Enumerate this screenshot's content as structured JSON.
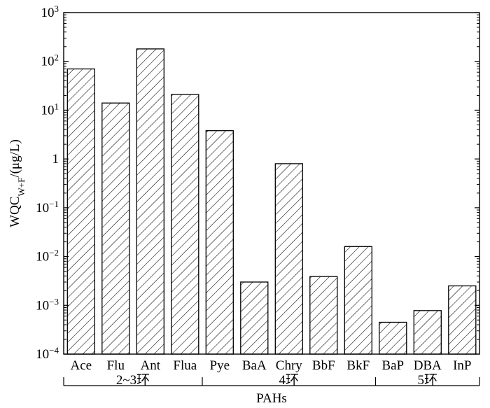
{
  "chart_data": {
    "type": "bar",
    "title": "",
    "ylabel_main": "WQC",
    "ylabel_sub": "W+F",
    "ylabel_tail": "/(μg/L)",
    "xlabel": "PAHs",
    "y_scale": "log",
    "ylim": [
      0.0001,
      1000
    ],
    "y_ticks": [
      {
        "value": 0.0001,
        "base": "10",
        "exp": "−4"
      },
      {
        "value": 0.001,
        "base": "10",
        "exp": "−3"
      },
      {
        "value": 0.01,
        "base": "10",
        "exp": "−2"
      },
      {
        "value": 0.1,
        "base": "10",
        "exp": "−1"
      },
      {
        "value": 1,
        "base": "1",
        "exp": ""
      },
      {
        "value": 10,
        "base": "10",
        "exp": "1"
      },
      {
        "value": 100,
        "base": "10",
        "exp": "2"
      },
      {
        "value": 1000,
        "base": "10",
        "exp": "3"
      }
    ],
    "categories": [
      "Ace",
      "Flu",
      "Ant",
      "Flua",
      "Pye",
      "BaA",
      "Chry",
      "BbF",
      "BkF",
      "BaP",
      "DBA",
      "InP"
    ],
    "values": [
      70,
      14,
      180,
      21,
      3.8,
      0.003,
      0.8,
      0.0039,
      0.016,
      0.00045,
      0.00078,
      0.0025
    ],
    "groups": [
      {
        "label": "2~3环",
        "start": 0,
        "end": 3
      },
      {
        "label": "4环",
        "start": 4,
        "end": 8
      },
      {
        "label": "5环",
        "start": 9,
        "end": 11
      }
    ],
    "bar_fill": "hatched",
    "grid": false,
    "legend": "none"
  }
}
